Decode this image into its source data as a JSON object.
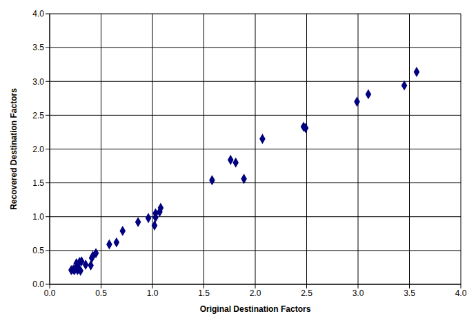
{
  "chart_data": {
    "type": "scatter",
    "x_label": "Original Destination Factors",
    "y_label": "Recovered Destination Factors",
    "color": "#000080",
    "marker": "diamond",
    "grid": true,
    "xlim": [
      0,
      4
    ],
    "ylim": [
      0,
      4
    ],
    "xticks": [
      {
        "value": 0,
        "label": "0.0"
      },
      0.5,
      {
        "value": 1,
        "label": "1.0"
      },
      1.5,
      {
        "value": 2,
        "label": "2.0"
      },
      2.5,
      {
        "value": 3,
        "label": "3.0"
      },
      3.5,
      {
        "value": 4,
        "label": "4.0"
      }
    ],
    "yticks": [
      {
        "value": 0,
        "label": "0.0"
      },
      0.5,
      {
        "value": 1,
        "label": "1.0"
      },
      1.5,
      {
        "value": 2,
        "label": "2.0"
      },
      2.5,
      {
        "value": 3,
        "label": "3.0"
      },
      3.5,
      {
        "value": 4,
        "label": "4.0"
      }
    ],
    "x": [
      0.21,
      0.23,
      0.24,
      0.25,
      0.26,
      0.27,
      0.28,
      0.29,
      0.3,
      0.31,
      0.35,
      0.4,
      0.41,
      0.42,
      0.45,
      0.58,
      0.65,
      0.71,
      0.86,
      0.96,
      1.02,
      1.03,
      1.03,
      1.07,
      1.08,
      1.58,
      1.76,
      1.81,
      1.89,
      2.07,
      2.47,
      2.49,
      2.99,
      3.1,
      3.45,
      3.57
    ],
    "values": [
      0.21,
      0.22,
      0.21,
      0.23,
      0.31,
      0.21,
      0.23,
      0.33,
      0.2,
      0.34,
      0.29,
      0.28,
      0.39,
      0.42,
      0.46,
      0.59,
      0.62,
      0.79,
      0.92,
      0.98,
      0.87,
      0.99,
      1.05,
      1.07,
      1.13,
      1.54,
      1.84,
      1.8,
      1.56,
      2.15,
      2.33,
      2.31,
      2.7,
      2.81,
      2.94,
      3.14
    ]
  }
}
